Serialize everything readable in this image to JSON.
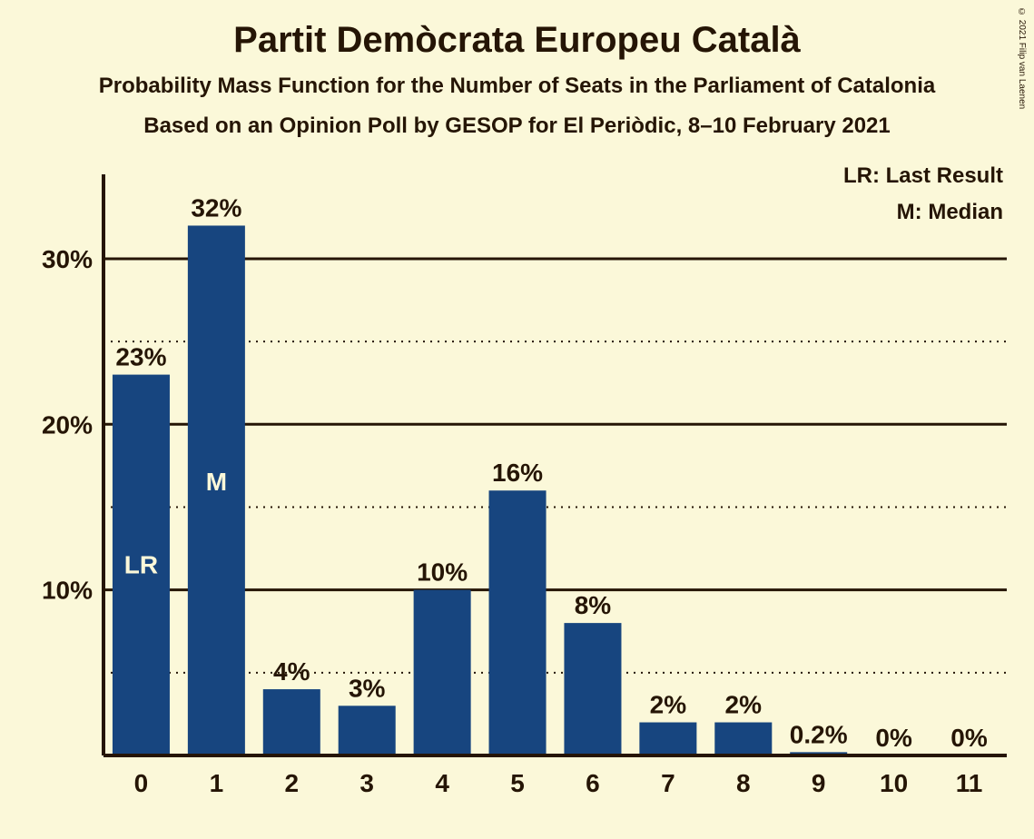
{
  "title": "Partit Demòcrata Europeu Català",
  "subtitle1": "Probability Mass Function for the Number of Seats in the Parliament of Catalonia",
  "subtitle2": "Based on an Opinion Poll by GESOP for El Periòdic, 8–10 February 2021",
  "legend": {
    "lr": "LR: Last Result",
    "m": "M: Median"
  },
  "copyright": "© 2021 Filip van Laenen",
  "chart": {
    "type": "bar",
    "background_color": "#fbf8d9",
    "bar_color": "#17457f",
    "text_color": "#251505",
    "in_bar_text_color": "#fbf8d9",
    "axis_stroke_width": 4,
    "grid_major_width": 3,
    "grid_minor_width": 2,
    "bar_width_ratio": 0.76,
    "y": {
      "max": 34,
      "major_ticks": [
        10,
        20,
        30
      ],
      "minor_ticks": [
        5,
        15,
        25
      ],
      "tick_labels": [
        "10%",
        "20%",
        "30%"
      ]
    },
    "categories": [
      "0",
      "1",
      "2",
      "3",
      "4",
      "5",
      "6",
      "7",
      "8",
      "9",
      "10",
      "11"
    ],
    "values": [
      23,
      32,
      4,
      3,
      10,
      16,
      8,
      2,
      2,
      0.2,
      0,
      0
    ],
    "value_labels": [
      "23%",
      "32%",
      "4%",
      "3%",
      "10%",
      "16%",
      "8%",
      "2%",
      "2%",
      "0.2%",
      "0%",
      "0%"
    ],
    "annotations": [
      {
        "bar_index": 0,
        "text": "LR",
        "y_value": 11
      },
      {
        "bar_index": 1,
        "text": "M",
        "y_value": 16
      }
    ],
    "title_fontsize": 40,
    "subtitle_fontsize": 24,
    "label_fontsize": 28
  }
}
